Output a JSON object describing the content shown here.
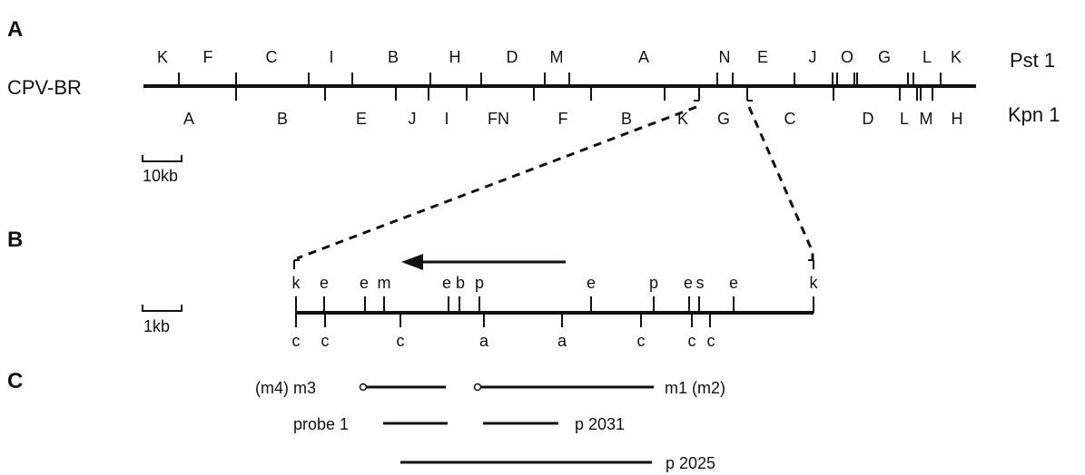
{
  "panels": {
    "a": "A",
    "b": "B",
    "c": "C"
  },
  "genome": {
    "name": "CPV-BR",
    "pst_label": "Pst 1",
    "kpn_label": "Kpn 1",
    "scale_label": "10kb",
    "pst_fragments": [
      "K",
      "F",
      "C",
      "I",
      "B",
      "H",
      "D",
      "M",
      "A",
      "N",
      "E",
      "J",
      "O",
      "G",
      "L",
      "K"
    ],
    "kpn_fragments": [
      "A",
      "B",
      "E",
      "J",
      "I",
      "FN",
      "F",
      "B",
      "K",
      "G",
      "C",
      "D",
      "L",
      "M",
      "H"
    ]
  },
  "detail": {
    "scale_label": "1kb",
    "top_sites": [
      "k",
      "e",
      "e",
      "m",
      "e",
      "b",
      "p",
      "e",
      "p",
      "e",
      "s",
      "e",
      "k"
    ],
    "bottom_sites": [
      "c",
      "c",
      "c",
      "a",
      "a",
      "c",
      "c",
      "c"
    ]
  },
  "clones": {
    "m3": "(m4) m3",
    "m1": "m1 (m2)",
    "probe": "probe 1",
    "p2031": "p 2031",
    "p2025": "p 2025"
  }
}
